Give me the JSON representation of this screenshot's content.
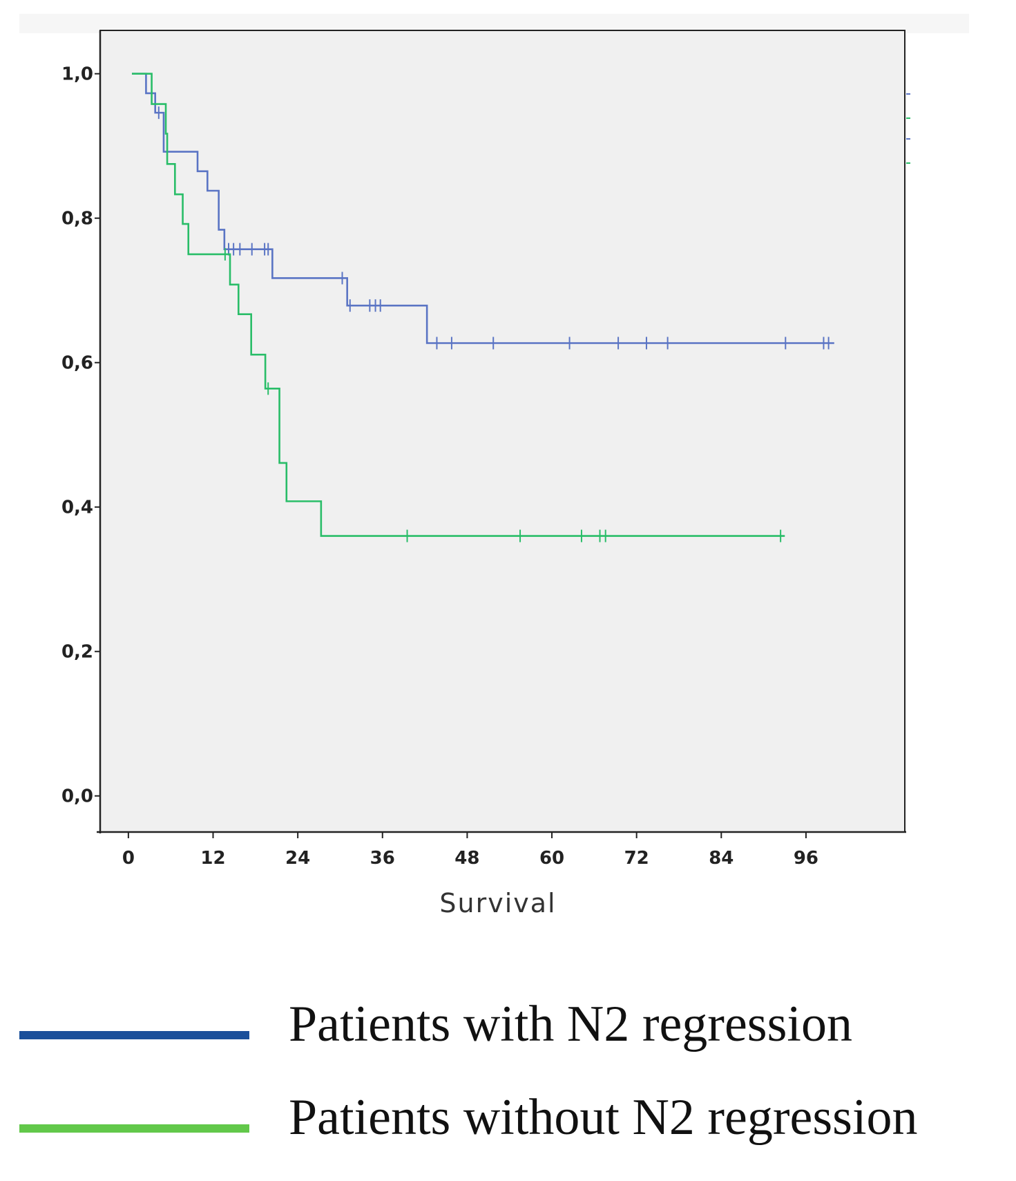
{
  "chart_data": {
    "type": "line",
    "xlabel": "Survival",
    "ylabel": "",
    "xlim": [
      -4,
      110
    ],
    "ylim": [
      -0.05,
      1.06
    ],
    "x_ticks": [
      0,
      12,
      24,
      36,
      48,
      60,
      72,
      84,
      96
    ],
    "x_tick_labels": [
      "0",
      "12",
      "24",
      "36",
      "48",
      "60",
      "72",
      "84",
      "96"
    ],
    "y_ticks": [
      0,
      0.2,
      0.4,
      0.6,
      0.8,
      1.0
    ],
    "y_tick_labels": [
      "0,0",
      "0,2",
      "0,4",
      "0,6",
      "0,8",
      "1,0"
    ],
    "grid": false,
    "series": [
      {
        "name": "Patients with N2 regression",
        "color": "#5a74c4",
        "steps": [
          [
            0.5,
            1.0
          ],
          [
            2.5,
            0.973
          ],
          [
            3.8,
            0.946
          ],
          [
            5.0,
            0.892
          ],
          [
            9.8,
            0.865
          ],
          [
            11.2,
            0.838
          ],
          [
            12.8,
            0.784
          ],
          [
            13.6,
            0.757
          ],
          [
            20.4,
            0.717
          ],
          [
            31.0,
            0.679
          ],
          [
            42.3,
            0.627
          ],
          [
            100.0,
            0.627
          ]
        ],
        "censored": [
          4.3,
          14.2,
          14.9,
          15.8,
          17.5,
          19.3,
          19.8,
          30.3,
          31.4,
          34.2,
          35.0,
          35.7,
          43.7,
          45.8,
          51.7,
          62.5,
          69.4,
          73.4,
          76.4,
          93.1,
          98.5,
          99.2
        ]
      },
      {
        "name": "Patients without N2 regression",
        "color": "#29bd68",
        "steps": [
          [
            0.5,
            1.0
          ],
          [
            3.3,
            0.958
          ],
          [
            5.3,
            0.917
          ],
          [
            5.5,
            0.875
          ],
          [
            6.6,
            0.833
          ],
          [
            7.7,
            0.792
          ],
          [
            8.5,
            0.75
          ],
          [
            14.4,
            0.708
          ],
          [
            15.6,
            0.667
          ],
          [
            17.4,
            0.611
          ],
          [
            19.4,
            0.564
          ],
          [
            21.4,
            0.461
          ],
          [
            22.4,
            0.408
          ],
          [
            27.3,
            0.36
          ],
          [
            93.0,
            0.36
          ]
        ],
        "censored": [
          13.7,
          19.8,
          39.5,
          55.5,
          64.2,
          66.8,
          67.6,
          92.4
        ]
      }
    ],
    "legend_position": "bottom",
    "legend": [
      {
        "label": "Patients with N2 regression",
        "color": "#1a4f9a"
      },
      {
        "label": "Patients without N2 regression",
        "color": "#62c84a"
      }
    ]
  }
}
